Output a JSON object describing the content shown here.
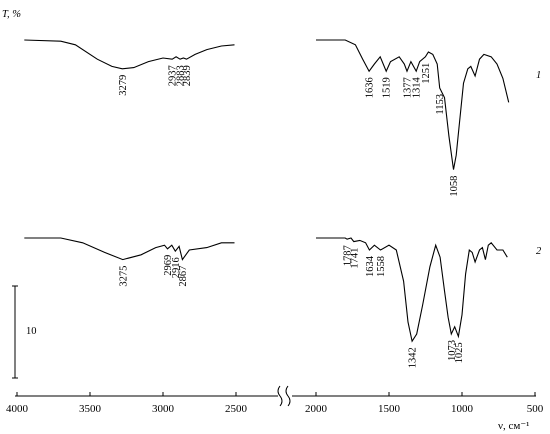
{
  "chart_data": {
    "type": "line",
    "ylabel": "T, %",
    "xlabel": "ν, см⁻¹",
    "x_ticks": [
      "4000",
      "3500",
      "3000",
      "2500",
      "2000",
      "1500",
      "1000",
      "500"
    ],
    "axis_break": true,
    "scale_bar_label": "10",
    "series": [
      {
        "name": "1",
        "points": [
          [
            3950,
            0
          ],
          [
            3700,
            -0.5
          ],
          [
            3600,
            -2
          ],
          [
            3450,
            -8
          ],
          [
            3350,
            -11
          ],
          [
            3279,
            -12
          ],
          [
            3200,
            -11.5
          ],
          [
            3100,
            -9
          ],
          [
            3000,
            -7.5
          ],
          [
            2937,
            -8
          ],
          [
            2910,
            -7
          ],
          [
            2883,
            -8
          ],
          [
            2860,
            -7.5
          ],
          [
            2839,
            -8
          ],
          [
            2780,
            -6
          ],
          [
            2700,
            -4
          ],
          [
            2600,
            -2.5
          ],
          [
            2510,
            -2
          ],
          [
            2000,
            0
          ],
          [
            1800,
            0
          ],
          [
            1730,
            -2
          ],
          [
            1680,
            -8
          ],
          [
            1636,
            -13
          ],
          [
            1600,
            -10
          ],
          [
            1560,
            -7
          ],
          [
            1519,
            -13
          ],
          [
            1490,
            -9
          ],
          [
            1430,
            -7
          ],
          [
            1395,
            -10
          ],
          [
            1377,
            -13
          ],
          [
            1350,
            -9
          ],
          [
            1314,
            -13
          ],
          [
            1290,
            -9
          ],
          [
            1251,
            -7
          ],
          [
            1230,
            -5
          ],
          [
            1200,
            -6
          ],
          [
            1170,
            -10
          ],
          [
            1153,
            -20
          ],
          [
            1120,
            -24
          ],
          [
            1090,
            -40
          ],
          [
            1058,
            -54
          ],
          [
            1040,
            -48
          ],
          [
            1020,
            -36
          ],
          [
            990,
            -18
          ],
          [
            960,
            -12
          ],
          [
            940,
            -11
          ],
          [
            910,
            -15
          ],
          [
            880,
            -8
          ],
          [
            850,
            -6
          ],
          [
            800,
            -7
          ],
          [
            760,
            -10
          ],
          [
            720,
            -16
          ],
          [
            680,
            -26
          ]
        ],
        "peaks": [
          "3279",
          "2937",
          "2883",
          "2839",
          "1636",
          "1519",
          "1377",
          "1314",
          "1251",
          "1153",
          "1058"
        ]
      },
      {
        "name": "2",
        "points": [
          [
            3950,
            0
          ],
          [
            3700,
            0
          ],
          [
            3550,
            -2
          ],
          [
            3400,
            -6
          ],
          [
            3275,
            -9
          ],
          [
            3150,
            -7
          ],
          [
            3050,
            -4
          ],
          [
            2990,
            -3
          ],
          [
            2969,
            -4.5
          ],
          [
            2940,
            -3
          ],
          [
            2916,
            -5.5
          ],
          [
            2890,
            -3.5
          ],
          [
            2867,
            -9
          ],
          [
            2820,
            -5
          ],
          [
            2700,
            -4
          ],
          [
            2600,
            -2
          ],
          [
            2510,
            -2
          ],
          [
            2000,
            0
          ],
          [
            1850,
            0
          ],
          [
            1800,
            0
          ],
          [
            1787,
            -0.5
          ],
          [
            1760,
            0
          ],
          [
            1741,
            -1.5
          ],
          [
            1700,
            -1
          ],
          [
            1660,
            -2
          ],
          [
            1634,
            -5
          ],
          [
            1600,
            -3
          ],
          [
            1558,
            -5
          ],
          [
            1500,
            -3
          ],
          [
            1450,
            -5
          ],
          [
            1400,
            -18
          ],
          [
            1370,
            -35
          ],
          [
            1342,
            -43
          ],
          [
            1310,
            -40
          ],
          [
            1270,
            -28
          ],
          [
            1220,
            -12
          ],
          [
            1180,
            -3
          ],
          [
            1150,
            -8
          ],
          [
            1120,
            -22
          ],
          [
            1095,
            -33
          ],
          [
            1073,
            -40
          ],
          [
            1050,
            -37
          ],
          [
            1025,
            -41
          ],
          [
            1000,
            -32
          ],
          [
            975,
            -15
          ],
          [
            950,
            -5
          ],
          [
            930,
            -6
          ],
          [
            910,
            -10
          ],
          [
            880,
            -5
          ],
          [
            860,
            -4
          ],
          [
            840,
            -9
          ],
          [
            820,
            -3
          ],
          [
            800,
            -2
          ],
          [
            760,
            -5
          ],
          [
            720,
            -5
          ],
          [
            690,
            -8
          ]
        ],
        "peaks": [
          "3275",
          "2969",
          "2916",
          "2867",
          "1787",
          "1741",
          "1634",
          "1558",
          "1342",
          "1073",
          "1025"
        ]
      }
    ]
  }
}
